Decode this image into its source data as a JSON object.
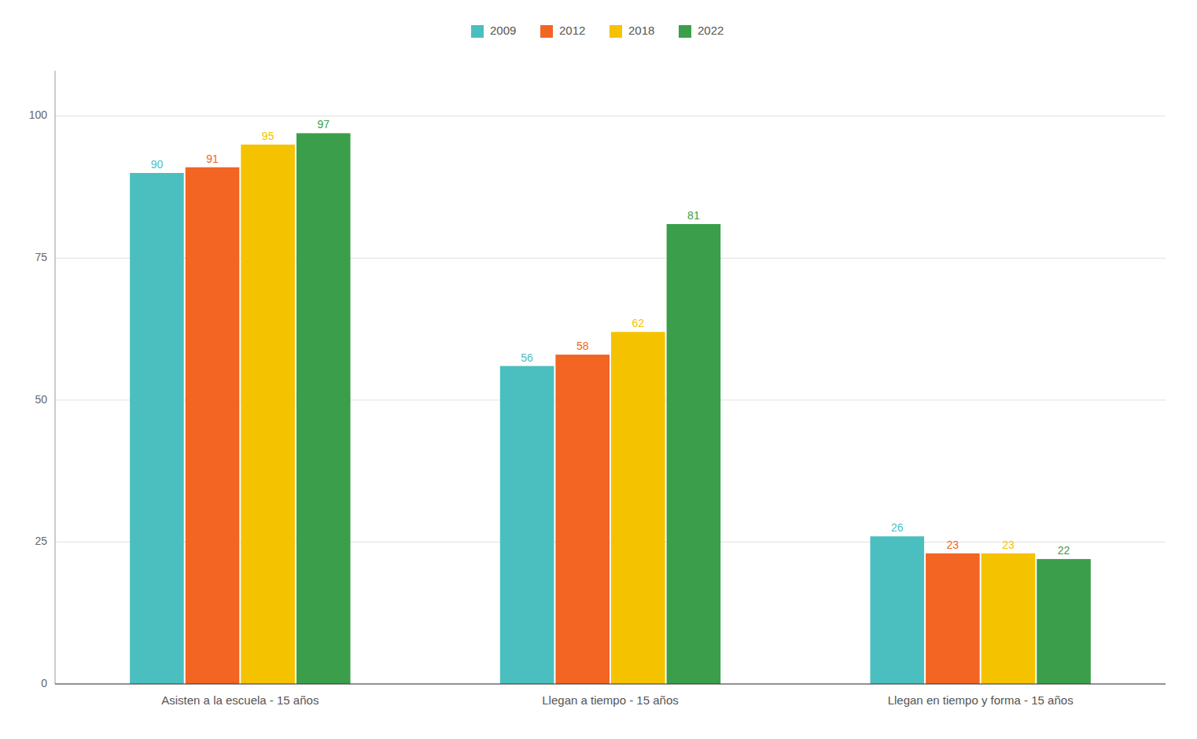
{
  "chart_data": {
    "type": "bar",
    "categories": [
      "Asisten a la escuela - 15 años",
      "Llegan a tiempo - 15 años",
      "Llegan en tiempo y forma - 15 años"
    ],
    "series": [
      {
        "name": "2009",
        "color": "#4BBFBF",
        "values": [
          90,
          56,
          26
        ]
      },
      {
        "name": "2012",
        "color": "#F26522",
        "values": [
          91,
          58,
          23
        ]
      },
      {
        "name": "2018",
        "color": "#F5C200",
        "values": [
          95,
          62,
          23
        ]
      },
      {
        "name": "2022",
        "color": "#3A9E4A",
        "values": [
          97,
          81,
          22
        ]
      }
    ],
    "ylim": [
      0,
      108
    ],
    "yticks": [
      0,
      25,
      50,
      75,
      100
    ],
    "grid": true,
    "legend": "top",
    "data_labels": true
  }
}
